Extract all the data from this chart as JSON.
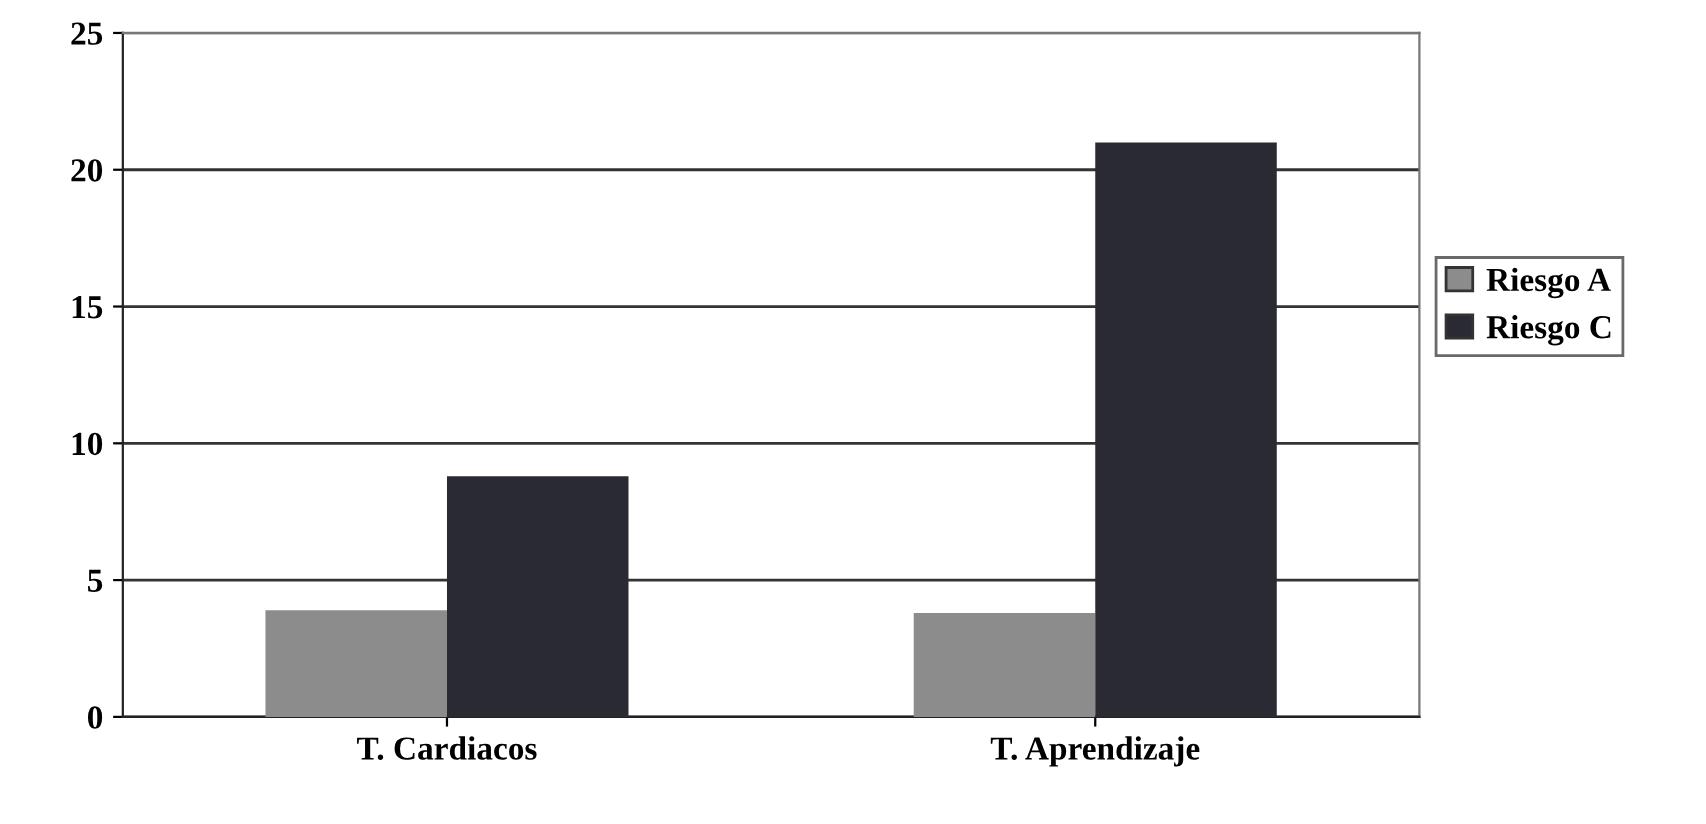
{
  "chart_data": {
    "type": "bar",
    "categories": [
      "T. Cardiacos",
      "T. Aprendizaje"
    ],
    "series": [
      {
        "name": "Riesgo A",
        "color": "#8c8c8c",
        "values": [
          3.9,
          3.8
        ]
      },
      {
        "name": "Riesgo C",
        "color": "#2a2a33",
        "values": [
          8.8,
          21
        ]
      }
    ],
    "ylim": [
      0,
      25
    ],
    "yticks": [
      0,
      5,
      10,
      15,
      20,
      25
    ],
    "grid": "y",
    "legend": "right"
  }
}
